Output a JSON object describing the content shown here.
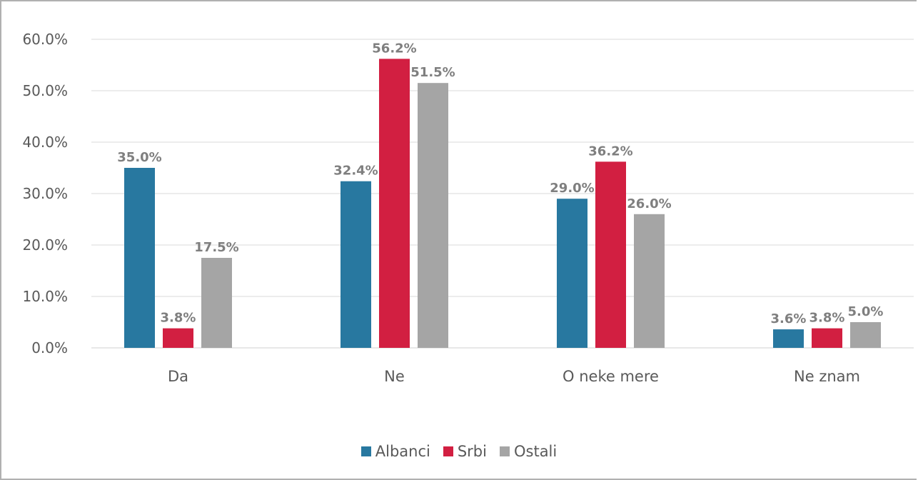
{
  "chart_data": {
    "type": "bar",
    "title": "",
    "xlabel": "",
    "ylabel": "",
    "categories": [
      "Da",
      "Ne",
      "O neke mere",
      "Ne znam"
    ],
    "series": [
      {
        "name": "Albanci",
        "color": "#2878a0",
        "values": [
          35.0,
          32.4,
          29.0,
          3.6
        ],
        "labels": [
          "35.0%",
          "32.4%",
          "29.0%",
          "3.6%"
        ]
      },
      {
        "name": "Srbi",
        "color": "#d21f41",
        "values": [
          3.8,
          56.2,
          36.2,
          3.8
        ],
        "labels": [
          "3.8%",
          "56.2%",
          "36.2%",
          "3.8%"
        ]
      },
      {
        "name": "Ostali",
        "color": "#a5a5a5",
        "values": [
          17.5,
          51.5,
          26.0,
          5.0
        ],
        "labels": [
          "17.5%",
          "51.5%",
          "26.0%",
          "5.0%"
        ]
      }
    ],
    "ylim": [
      0,
      60
    ],
    "yticks": [
      "0.0%",
      "10.0%",
      "20.0%",
      "30.0%",
      "40.0%",
      "50.0%",
      "60.0%"
    ],
    "grid": true,
    "legend_position": "bottom"
  }
}
